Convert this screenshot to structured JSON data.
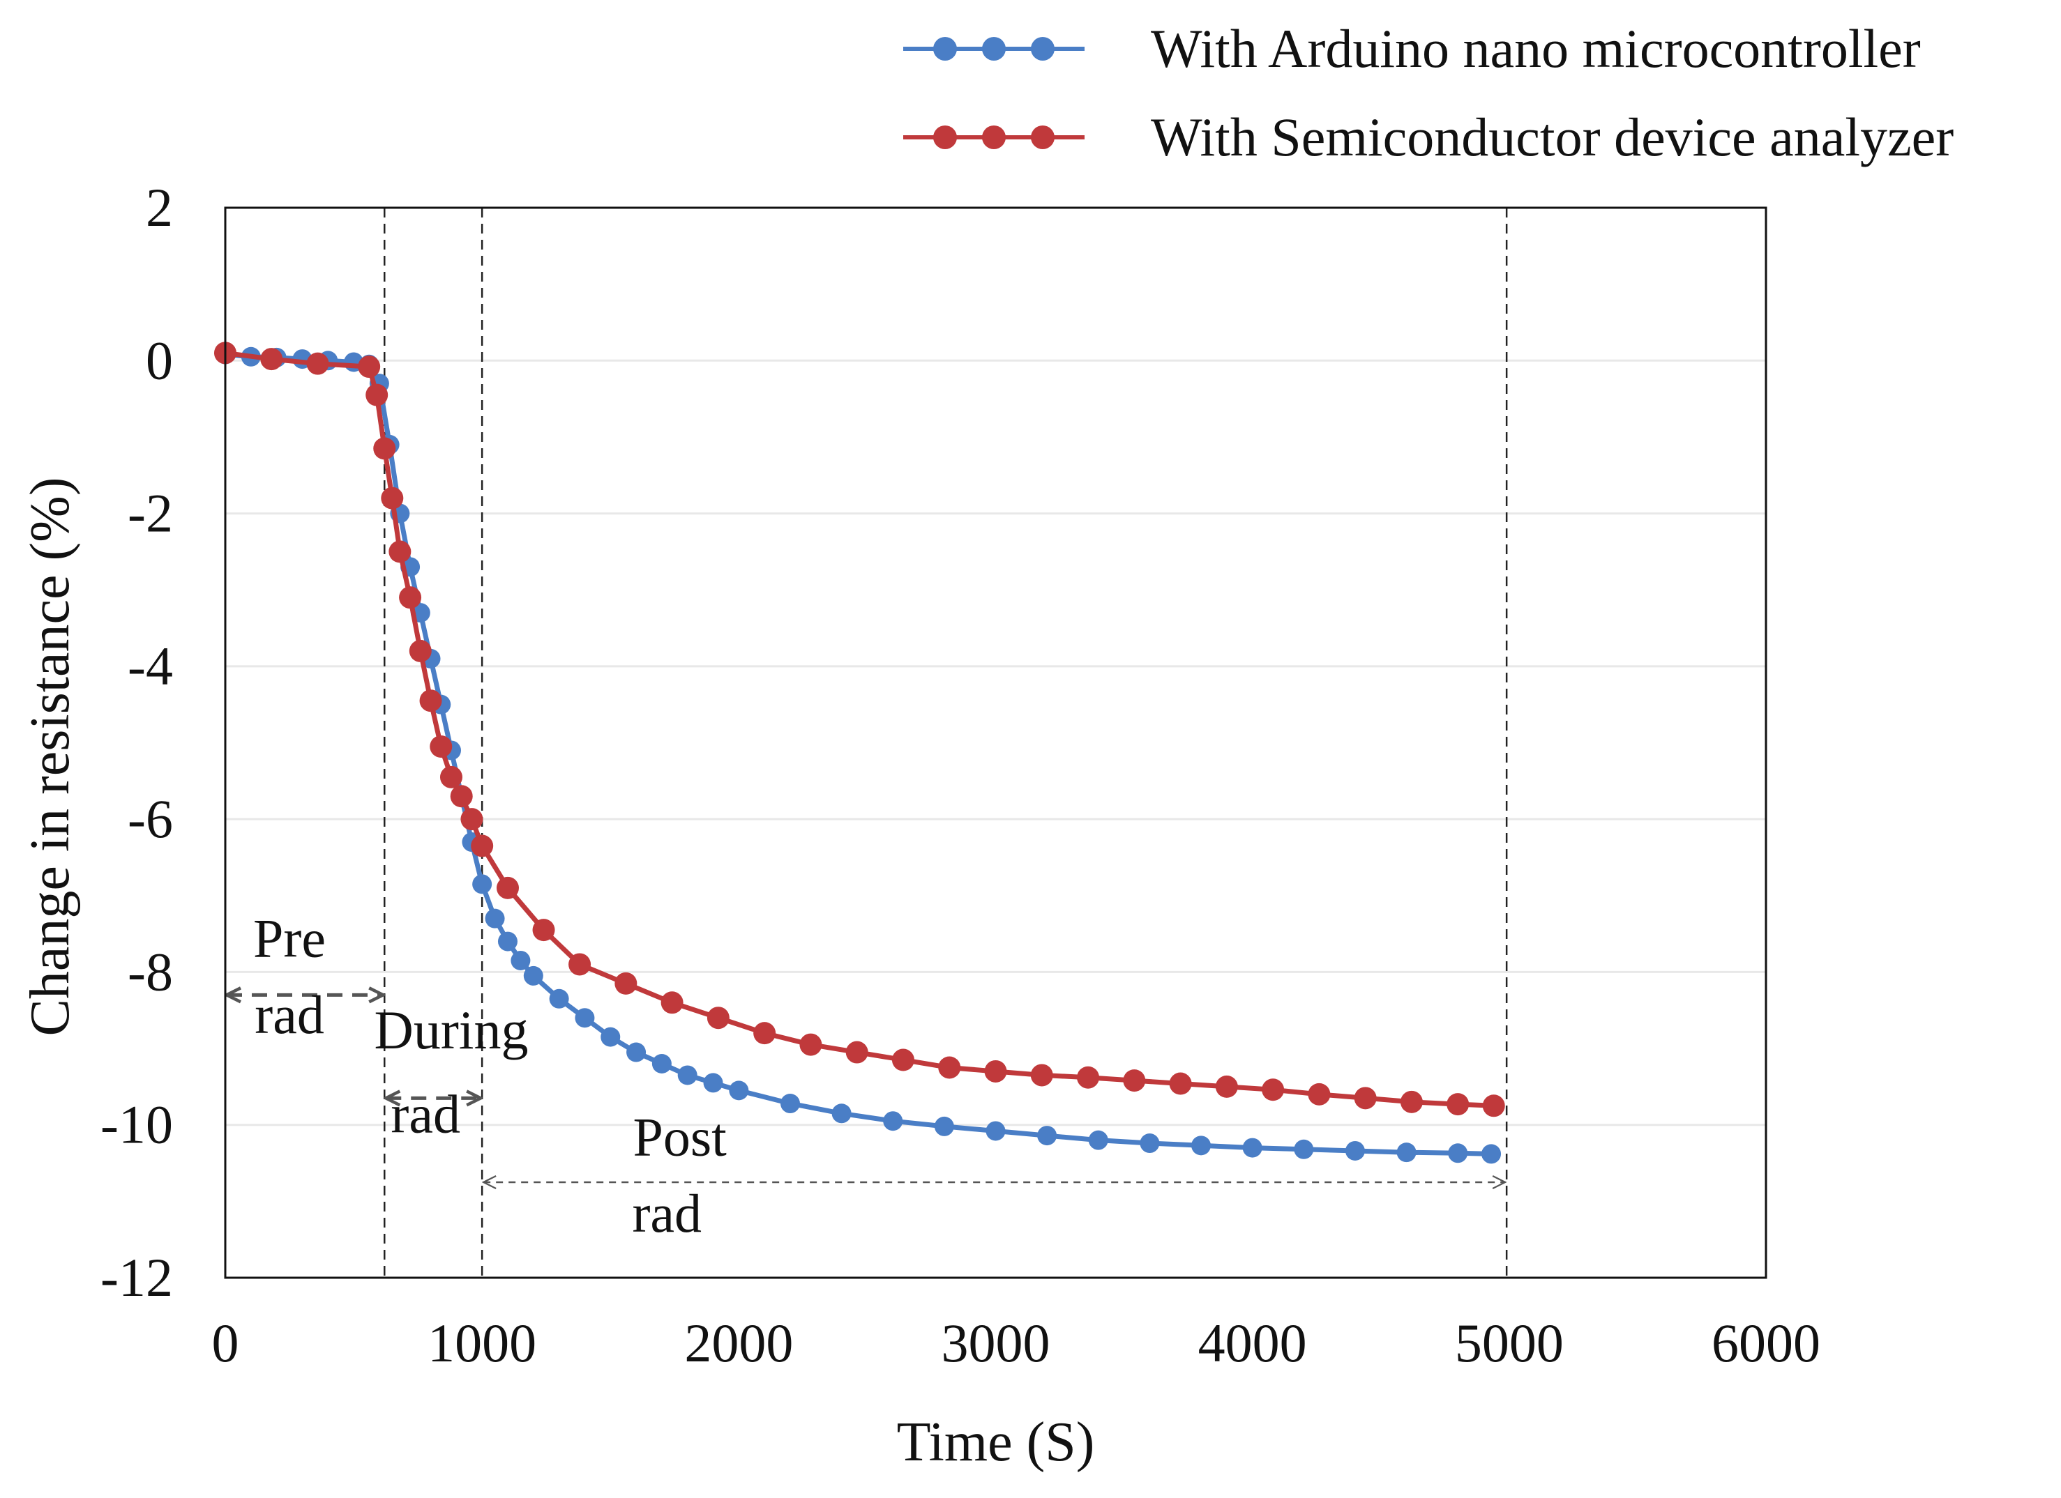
{
  "chart_data": {
    "type": "line",
    "title": "",
    "xlabel": "Time (S)",
    "ylabel": "Change in resistance (%)",
    "xlim": [
      0,
      6000
    ],
    "ylim": [
      -12,
      2
    ],
    "xticks": [
      0,
      1000,
      2000,
      3000,
      4000,
      5000,
      6000
    ],
    "yticks": [
      2,
      0,
      -2,
      -4,
      -6,
      -8,
      -10,
      -12
    ],
    "grid": "horizontal",
    "legend_position": "top-right",
    "vlines": [
      620,
      1000,
      4990
    ],
    "colors": {
      "arduino": "#4A7EC6",
      "analyzer": "#C0393B",
      "frame": "#111111",
      "grid": "#e8e8e8"
    },
    "series": [
      {
        "name": "With Arduino nano microcontroller",
        "color": "#4A7EC6",
        "x": [
          0,
          100,
          200,
          300,
          400,
          500,
          560,
          600,
          640,
          680,
          720,
          760,
          800,
          840,
          880,
          920,
          960,
          1000,
          1050,
          1100,
          1150,
          1200,
          1300,
          1400,
          1500,
          1600,
          1700,
          1800,
          1900,
          2000,
          2200,
          2400,
          2600,
          2800,
          3000,
          3200,
          3400,
          3600,
          3800,
          4000,
          4200,
          4400,
          4600,
          4800,
          4930
        ],
        "y": [
          0.08,
          0.05,
          0.04,
          0.02,
          0.0,
          -0.02,
          -0.05,
          -0.3,
          -1.1,
          -2.0,
          -2.7,
          -3.3,
          -3.9,
          -4.5,
          -5.1,
          -5.7,
          -6.3,
          -6.85,
          -7.3,
          -7.6,
          -7.85,
          -8.05,
          -8.35,
          -8.6,
          -8.85,
          -9.05,
          -9.2,
          -9.35,
          -9.45,
          -9.55,
          -9.72,
          -9.85,
          -9.95,
          -10.02,
          -10.08,
          -10.14,
          -10.2,
          -10.24,
          -10.27,
          -10.3,
          -10.32,
          -10.34,
          -10.36,
          -10.37,
          -10.38
        ]
      },
      {
        "name": "With Semiconductor device analyzer",
        "color": "#C0393B",
        "x": [
          0,
          180,
          360,
          560,
          590,
          620,
          650,
          680,
          720,
          760,
          800,
          840,
          880,
          920,
          960,
          1000,
          1100,
          1240,
          1380,
          1560,
          1740,
          1920,
          2100,
          2280,
          2460,
          2640,
          2820,
          3000,
          3180,
          3360,
          3540,
          3720,
          3900,
          4080,
          4260,
          4440,
          4620,
          4800,
          4940
        ],
        "y": [
          0.1,
          0.02,
          -0.04,
          -0.08,
          -0.45,
          -1.15,
          -1.8,
          -2.5,
          -3.1,
          -3.8,
          -4.45,
          -5.05,
          -5.45,
          -5.7,
          -6.0,
          -6.35,
          -6.9,
          -7.45,
          -7.9,
          -8.15,
          -8.4,
          -8.6,
          -8.8,
          -8.95,
          -9.05,
          -9.15,
          -9.25,
          -9.3,
          -9.35,
          -9.38,
          -9.42,
          -9.46,
          -9.5,
          -9.54,
          -9.6,
          -9.65,
          -9.7,
          -9.73,
          -9.75
        ]
      }
    ],
    "annotations": [
      {
        "text": "Pre",
        "x": 250,
        "y": -7.8
      },
      {
        "text": "rad",
        "x": 250,
        "y": -8.8
      },
      {
        "text": "During",
        "x": 880,
        "y": -9.0
      },
      {
        "text": "rad",
        "x": 780,
        "y": -10.1
      },
      {
        "text": "Post",
        "x": 1770,
        "y": -10.4
      },
      {
        "text": "rad",
        "x": 1720,
        "y": -11.4
      }
    ],
    "arrows": [
      {
        "from": 0,
        "to": 620,
        "y": -8.3
      },
      {
        "from": 620,
        "to": 1000,
        "y": -9.65
      },
      {
        "from": 1000,
        "to": 4990,
        "y": -10.75
      }
    ]
  }
}
